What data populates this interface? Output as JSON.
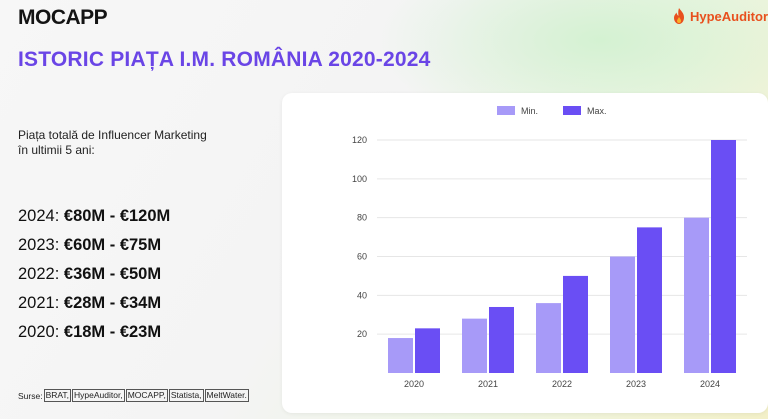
{
  "header": {
    "logo": "MOCAPP",
    "partner": "HypeAuditor",
    "partner_icon": "flame-icon"
  },
  "title": "ISTORIC PIAȚA I.M. ROMÂNIA 2020-2024",
  "intro": "Piața totală de Influencer Marketing în ultimii 5 ani:",
  "ranges": [
    {
      "year": "2024:",
      "value": "€80M - €120M"
    },
    {
      "year": "2023:",
      "value": "€60M - €75M"
    },
    {
      "year": "2022:",
      "value": "€36M - €50M"
    },
    {
      "year": "2021:",
      "value": "€28M - €34M"
    },
    {
      "year": "2020:",
      "value": "€18M - €23M"
    }
  ],
  "sources": {
    "label": "Surse:",
    "items": [
      "BRAT,",
      "HypeAuditor,",
      "MOCAPP,",
      "Statista,",
      "MeltWater."
    ]
  },
  "colors": {
    "title": "#6a45e6",
    "min": "#a79af8",
    "max": "#6a4ef4"
  },
  "chart_data": {
    "type": "bar",
    "categories": [
      "2020",
      "2021",
      "2022",
      "2023",
      "2024"
    ],
    "series": [
      {
        "name": "Min.",
        "values": [
          18,
          28,
          36,
          60,
          80
        ]
      },
      {
        "name": "Max.",
        "values": [
          23,
          34,
          50,
          75,
          120
        ]
      }
    ],
    "y_ticks": [
      "20",
      "40",
      "60",
      "80",
      "100",
      "120"
    ],
    "y_tick_values": [
      20,
      40,
      60,
      80,
      100,
      120
    ],
    "ylim": [
      0,
      120
    ],
    "legend": "top-center",
    "grid": true
  }
}
